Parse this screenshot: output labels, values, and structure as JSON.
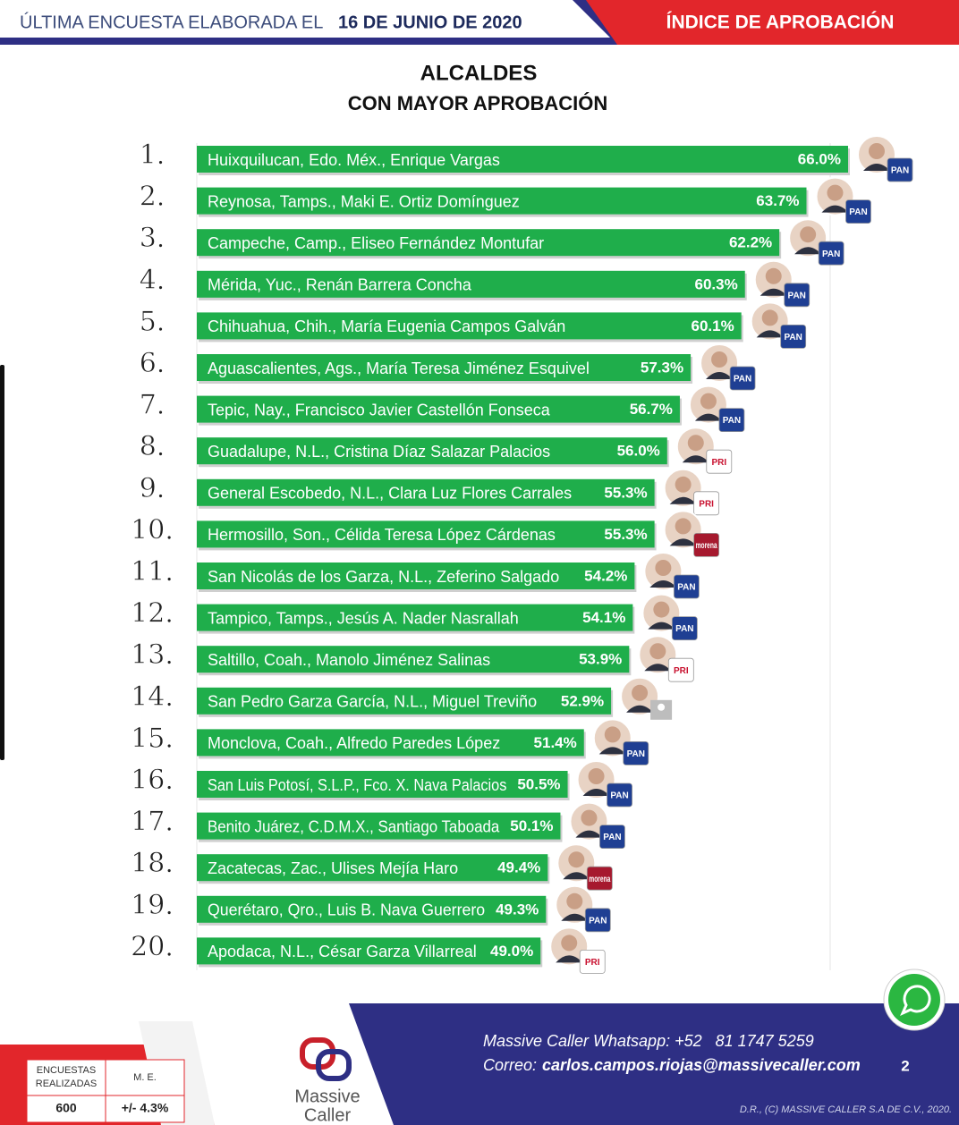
{
  "header": {
    "prefix": "ÚLTIMA ENCUESTA ELABORADA EL",
    "date": "16 DE JUNIO DE 2020",
    "section": "ÍNDICE DE APROBACIÓN"
  },
  "chart_data": {
    "type": "bar",
    "orientation": "horizontal",
    "title": "ALCALDES",
    "subtitle": "CON MAYOR APROBACIÓN",
    "ranks": [
      "1.",
      "2.",
      "3.",
      "4.",
      "5.",
      "6.",
      "7.",
      "8.",
      "9.",
      "10.",
      "11.",
      "12.",
      "13.",
      "14.",
      "15.",
      "16.",
      "17.",
      "18.",
      "19.",
      "20."
    ],
    "categories": [
      "Huixquilucan, Edo. Méx., Enrique Vargas",
      "Reynosa, Tamps., Maki E. Ortiz Domínguez",
      "Campeche, Camp., Eliseo Fernández Montufar",
      "Mérida, Yuc., Renán Barrera Concha",
      "Chihuahua, Chih., María Eugenia Campos Galván",
      "Aguascalientes, Ags., María Teresa Jiménez Esquivel",
      "Tepic, Nay., Francisco Javier Castellón Fonseca",
      "Guadalupe, N.L., Cristina Díaz Salazar Palacios",
      "General Escobedo, N.L., Clara Luz Flores Carrales",
      "Hermosillo, Son., Célida Teresa López Cárdenas",
      "San Nicolás de los Garza, N.L., Zeferino Salgado",
      "Tampico, Tamps., Jesús A. Nader Nasrallah",
      "Saltillo, Coah., Manolo Jiménez Salinas",
      "San Pedro Garza García, N.L., Miguel Treviño",
      "Monclova, Coah., Alfredo Paredes López",
      "San Luis Potosí, S.L.P., Fco. X. Nava Palacios",
      "Benito Juárez, C.D.M.X., Santiago Taboada",
      "Zacatecas, Zac., Ulises Mejía Haro",
      "Querétaro, Qro., Luis B. Nava Guerrero",
      "Apodaca, N.L., César Garza Villarreal"
    ],
    "values": [
      66.0,
      63.7,
      62.2,
      60.3,
      60.1,
      57.3,
      56.7,
      56.0,
      55.3,
      55.3,
      54.2,
      54.1,
      53.9,
      52.9,
      51.4,
      50.5,
      50.1,
      49.4,
      49.3,
      49.0
    ],
    "value_labels": [
      "66.0%",
      "63.7%",
      "62.2%",
      "60.3%",
      "60.1%",
      "57.3%",
      "56.7%",
      "56.0%",
      "55.3%",
      "55.3%",
      "54.2%",
      "54.1%",
      "53.9%",
      "52.9%",
      "51.4%",
      "50.5%",
      "50.1%",
      "49.4%",
      "49.3%",
      "49.0%"
    ],
    "parties": [
      "PAN",
      "PAN",
      "PAN",
      "PAN",
      "PAN",
      "PAN",
      "PAN",
      "PRI",
      "PRI",
      "morena",
      "PAN",
      "PAN",
      "PRI",
      null,
      "PAN",
      "PAN",
      "PAN",
      "morena",
      "PAN",
      "PRI"
    ],
    "party_styles": {
      "PAN": {
        "fill": "#1f3f93",
        "text": "#ffffff"
      },
      "PRI": {
        "fill": "#ffffff",
        "text": "#c8102e"
      },
      "morena": {
        "fill": "#a6192e",
        "text": "#ffffff"
      }
    },
    "color": "#1fae4b",
    "xlim": [
      30,
      66
    ]
  },
  "footer": {
    "whatsapp": "Massive Caller Whatsapp: +52   81 1747 5259",
    "mail_label": "Correo:",
    "mail": "carlos.campos.riojas@massivecaller.com",
    "page": "2",
    "rights": "D.R., (C) MASSIVE CALLER S.A DE C.V., 2020.",
    "logo_top": "Massive",
    "logo_bottom": "Caller",
    "table": {
      "survey_label": [
        "ENCUESTAS",
        "REALIZADAS"
      ],
      "error_label": "M. E.",
      "surveys": "600",
      "error": "+/- 4.3%"
    }
  }
}
